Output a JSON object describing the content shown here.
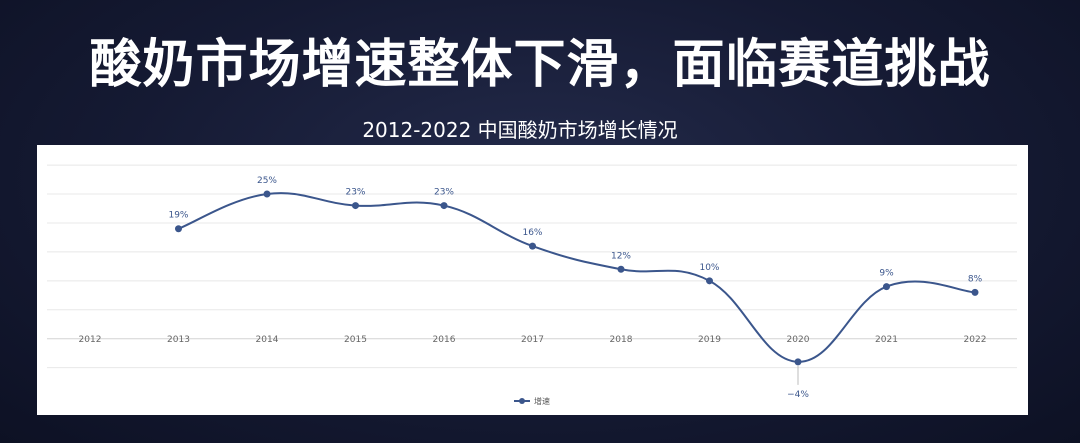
{
  "headline": "酸奶市场增速整体下滑，面临赛道挑战",
  "chart_data": {
    "type": "line",
    "title": "2012-2022 中国酸奶市场增长情况",
    "categories": [
      "2012",
      "2013",
      "2014",
      "2015",
      "2016",
      "2017",
      "2018",
      "2019",
      "2020",
      "2021",
      "2022"
    ],
    "series": [
      {
        "name": "增速",
        "values": [
          null,
          19,
          25,
          23,
          23,
          16,
          12,
          10,
          -4,
          9,
          8
        ],
        "labels": [
          "",
          "19%",
          "25%",
          "23%",
          "23%",
          "16%",
          "12%",
          "10%",
          "−4%",
          "9%",
          "8%"
        ]
      }
    ],
    "ylim": [
      -8,
      32
    ],
    "y_axis_shown": false,
    "grid": "horizontal",
    "smooth": true,
    "legend_position": "bottom-center",
    "colors": {
      "line": "#3b568c",
      "grid": "#e8e8e8",
      "zero_line": "#d4d4d4"
    }
  }
}
